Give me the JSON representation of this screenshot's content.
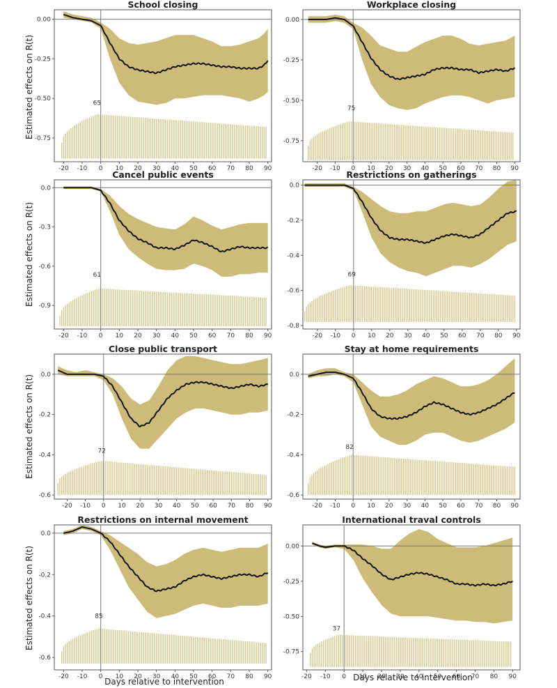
{
  "figure": {
    "ylabel": "Estimated effects on R(t)",
    "xlabel": "Days relative to intervention"
  },
  "colors": {
    "band": "#c9b56e",
    "bars": "#d8c88e",
    "line": "#111111",
    "frame": "#555555",
    "refline": "#777777"
  },
  "chart_data": [
    {
      "type": "line",
      "title": "School closing",
      "xlim": [
        -25,
        92
      ],
      "ylim": [
        -0.9,
        0.06
      ],
      "xticks": [
        -20,
        -10,
        0,
        10,
        20,
        30,
        40,
        50,
        60,
        70,
        80,
        90
      ],
      "yticks": [
        0.0,
        -0.25,
        -0.5,
        -0.75
      ],
      "ytick_labels": [
        "0.00",
        "-0.25",
        "-0.50",
        "-0.75"
      ],
      "xtick_labels": [
        "-20",
        "-10",
        "0",
        "10",
        "20",
        "30",
        "40",
        "50",
        "60",
        "70",
        "80",
        "90"
      ],
      "bars": {
        "x_start": -21,
        "x_end": 89,
        "bottom": -0.88,
        "top_start": -0.78,
        "top_plateau": -0.6,
        "ramp_end": -2,
        "top_end": -0.68
      },
      "count_label": "65",
      "count_label_x": -2,
      "count_label_y": -0.54,
      "x": [
        -20,
        -15,
        -10,
        -5,
        0,
        5,
        10,
        15,
        20,
        25,
        30,
        35,
        40,
        45,
        50,
        55,
        60,
        65,
        70,
        75,
        80,
        85,
        88,
        90
      ],
      "y": [
        0.03,
        0.01,
        0.0,
        -0.01,
        -0.04,
        -0.15,
        -0.25,
        -0.3,
        -0.32,
        -0.33,
        -0.34,
        -0.32,
        -0.3,
        -0.29,
        -0.28,
        -0.28,
        -0.29,
        -0.3,
        -0.3,
        -0.31,
        -0.31,
        -0.31,
        -0.29,
        -0.26
      ],
      "lower": [
        0.01,
        0.0,
        -0.01,
        -0.02,
        -0.06,
        -0.25,
        -0.4,
        -0.48,
        -0.52,
        -0.53,
        -0.54,
        -0.53,
        -0.5,
        -0.5,
        -0.49,
        -0.48,
        -0.48,
        -0.48,
        -0.49,
        -0.5,
        -0.52,
        -0.5,
        -0.48,
        -0.46
      ],
      "upper": [
        0.05,
        0.03,
        0.02,
        0.01,
        -0.02,
        -0.06,
        -0.12,
        -0.15,
        -0.16,
        -0.15,
        -0.14,
        -0.12,
        -0.1,
        -0.1,
        -0.1,
        -0.12,
        -0.14,
        -0.17,
        -0.17,
        -0.16,
        -0.14,
        -0.12,
        -0.09,
        -0.06
      ]
    },
    {
      "type": "line",
      "title": "Workplace closing",
      "xlim": [
        -28,
        93
      ],
      "ylim": [
        -0.88,
        0.06
      ],
      "xticks": [
        -20,
        -10,
        0,
        10,
        20,
        30,
        40,
        50,
        60,
        70,
        80,
        90
      ],
      "yticks": [
        0.0,
        -0.25,
        -0.5,
        -0.75
      ],
      "ytick_labels": [
        "0.00",
        "-0.25",
        "-0.50",
        "-0.75"
      ],
      "xtick_labels": [
        "-20",
        "-10",
        "0",
        "10",
        "20",
        "30",
        "40",
        "50",
        "60",
        "70",
        "80",
        "90"
      ],
      "bars": {
        "x_start": -25,
        "x_end": 89,
        "bottom": -0.87,
        "top_start": -0.78,
        "top_plateau": -0.63,
        "ramp_end": -2,
        "top_end": -0.7
      },
      "count_label": "75",
      "count_label_x": -1,
      "count_label_y": -0.56,
      "x": [
        -25,
        -20,
        -15,
        -10,
        -5,
        0,
        5,
        10,
        15,
        20,
        25,
        30,
        35,
        40,
        45,
        50,
        55,
        60,
        65,
        70,
        75,
        80,
        85,
        90
      ],
      "y": [
        0.0,
        0.0,
        0.0,
        0.01,
        0.0,
        -0.04,
        -0.14,
        -0.24,
        -0.31,
        -0.35,
        -0.37,
        -0.36,
        -0.35,
        -0.34,
        -0.31,
        -0.3,
        -0.3,
        -0.31,
        -0.31,
        -0.33,
        -0.32,
        -0.31,
        -0.32,
        -0.3
      ],
      "lower": [
        -0.02,
        -0.02,
        -0.02,
        -0.01,
        -0.02,
        -0.06,
        -0.25,
        -0.4,
        -0.48,
        -0.53,
        -0.55,
        -0.56,
        -0.55,
        -0.52,
        -0.5,
        -0.48,
        -0.47,
        -0.47,
        -0.48,
        -0.5,
        -0.52,
        -0.5,
        -0.49,
        -0.48
      ],
      "upper": [
        0.02,
        0.02,
        0.02,
        0.03,
        0.02,
        -0.02,
        -0.05,
        -0.1,
        -0.16,
        -0.18,
        -0.2,
        -0.2,
        -0.17,
        -0.14,
        -0.12,
        -0.1,
        -0.1,
        -0.12,
        -0.15,
        -0.16,
        -0.15,
        -0.14,
        -0.13,
        -0.1
      ]
    },
    {
      "type": "line",
      "title": "Cancel public events",
      "xlim": [
        -25,
        92
      ],
      "ylim": [
        -1.08,
        0.06
      ],
      "xticks": [
        -20,
        -10,
        0,
        10,
        20,
        30,
        40,
        50,
        60,
        70,
        80,
        90
      ],
      "yticks": [
        0.0,
        -0.3,
        -0.6,
        -0.9
      ],
      "ytick_labels": [
        "0.0",
        "-0.3",
        "-0.6",
        "-0.9"
      ],
      "xtick_labels": [
        "-20",
        "-10",
        "0",
        "10",
        "20",
        "30",
        "40",
        "50",
        "60",
        "70",
        "80",
        "90"
      ],
      "bars": {
        "x_start": -22,
        "x_end": 89,
        "bottom": -1.06,
        "top_start": -0.98,
        "top_plateau": -0.77,
        "ramp_end": -1,
        "top_end": -0.84
      },
      "count_label": "61",
      "count_label_x": -2,
      "count_label_y": -0.68,
      "x": [
        -20,
        -15,
        -10,
        -5,
        0,
        5,
        10,
        15,
        20,
        25,
        30,
        35,
        40,
        45,
        50,
        55,
        60,
        65,
        70,
        75,
        80,
        85,
        90
      ],
      "y": [
        0.0,
        0.0,
        0.0,
        0.0,
        -0.02,
        -0.12,
        -0.25,
        -0.33,
        -0.39,
        -0.42,
        -0.46,
        -0.46,
        -0.47,
        -0.44,
        -0.4,
        -0.42,
        -0.45,
        -0.49,
        -0.47,
        -0.45,
        -0.46,
        -0.46,
        -0.46
      ],
      "lower": [
        -0.01,
        -0.01,
        -0.01,
        -0.01,
        -0.03,
        -0.18,
        -0.36,
        -0.47,
        -0.53,
        -0.58,
        -0.62,
        -0.63,
        -0.63,
        -0.62,
        -0.58,
        -0.6,
        -0.63,
        -0.68,
        -0.68,
        -0.66,
        -0.66,
        -0.65,
        -0.65
      ],
      "upper": [
        0.01,
        0.01,
        0.01,
        0.01,
        -0.01,
        -0.06,
        -0.14,
        -0.2,
        -0.24,
        -0.27,
        -0.3,
        -0.31,
        -0.32,
        -0.28,
        -0.22,
        -0.25,
        -0.29,
        -0.32,
        -0.3,
        -0.28,
        -0.27,
        -0.27,
        -0.27
      ]
    },
    {
      "type": "line",
      "title": "Restrictions on gatherings",
      "xlim": [
        -28,
        92
      ],
      "ylim": [
        -0.82,
        0.03
      ],
      "xticks": [
        -20,
        -10,
        0,
        10,
        20,
        30,
        40,
        50,
        60,
        70,
        80,
        90
      ],
      "yticks": [
        0.0,
        -0.2,
        -0.4,
        -0.6,
        -0.8
      ],
      "ytick_labels": [
        "0.0",
        "-0.2",
        "-0.4",
        "-0.6",
        "-0.8"
      ],
      "xtick_labels": [
        "-20",
        "-10",
        "0",
        "10",
        "20",
        "30",
        "40",
        "50",
        "60",
        "70",
        "80",
        "90"
      ],
      "bars": {
        "x_start": -27,
        "x_end": 89,
        "bottom": -0.78,
        "top_start": -0.72,
        "top_plateau": -0.57,
        "ramp_end": -2,
        "top_end": -0.63
      },
      "count_label": "69",
      "count_label_x": -1,
      "count_label_y": -0.52,
      "x": [
        -27,
        -20,
        -15,
        -10,
        -5,
        0,
        5,
        10,
        15,
        20,
        25,
        30,
        35,
        40,
        45,
        50,
        55,
        60,
        65,
        70,
        75,
        80,
        85,
        90
      ],
      "y": [
        0.0,
        0.0,
        0.0,
        0.0,
        0.0,
        -0.02,
        -0.1,
        -0.19,
        -0.26,
        -0.3,
        -0.31,
        -0.31,
        -0.32,
        -0.33,
        -0.31,
        -0.29,
        -0.28,
        -0.29,
        -0.3,
        -0.28,
        -0.24,
        -0.2,
        -0.16,
        -0.15
      ],
      "lower": [
        -0.01,
        -0.01,
        -0.01,
        -0.01,
        -0.01,
        -0.03,
        -0.16,
        -0.3,
        -0.39,
        -0.44,
        -0.47,
        -0.49,
        -0.5,
        -0.52,
        -0.5,
        -0.48,
        -0.46,
        -0.46,
        -0.47,
        -0.45,
        -0.42,
        -0.38,
        -0.34,
        -0.32
      ],
      "upper": [
        0.01,
        0.01,
        0.01,
        0.01,
        0.01,
        -0.01,
        -0.04,
        -0.08,
        -0.12,
        -0.15,
        -0.16,
        -0.16,
        -0.15,
        -0.15,
        -0.13,
        -0.11,
        -0.1,
        -0.11,
        -0.12,
        -0.11,
        -0.07,
        -0.02,
        0.02,
        0.03
      ]
    },
    {
      "type": "line",
      "title": "Close public transport",
      "xlim": [
        -27,
        92
      ],
      "ylim": [
        -0.62,
        0.1
      ],
      "xticks": [
        -20,
        -10,
        0,
        10,
        20,
        30,
        40,
        50,
        60,
        70,
        80,
        90
      ],
      "yticks": [
        0.0,
        -0.2,
        -0.4,
        -0.6
      ],
      "ytick_labels": [
        "0.0",
        "-0.2",
        "-0.4",
        "-0.6"
      ],
      "xtick_labels": [
        "-20",
        "-10",
        "0",
        "10",
        "20",
        "30",
        "40",
        "50",
        "60",
        "70",
        "80",
        "90"
      ],
      "bars": {
        "x_start": -25,
        "x_end": 89,
        "bottom": -0.6,
        "top_start": -0.54,
        "top_plateau": -0.43,
        "ramp_end": -1,
        "top_end": -0.5
      },
      "count_label": "72",
      "count_label_x": -1,
      "count_label_y": -0.39,
      "x": [
        -25,
        -20,
        -15,
        -10,
        -5,
        0,
        5,
        10,
        15,
        20,
        25,
        30,
        35,
        40,
        45,
        50,
        55,
        60,
        65,
        70,
        75,
        80,
        85,
        90
      ],
      "y": [
        0.02,
        0.0,
        0.0,
        0.0,
        0.0,
        -0.01,
        -0.06,
        -0.14,
        -0.22,
        -0.26,
        -0.24,
        -0.18,
        -0.12,
        -0.08,
        -0.05,
        -0.04,
        -0.04,
        -0.05,
        -0.06,
        -0.07,
        -0.06,
        -0.05,
        -0.06,
        -0.05
      ],
      "lower": [
        0.0,
        -0.01,
        -0.01,
        -0.01,
        -0.01,
        -0.03,
        -0.1,
        -0.22,
        -0.32,
        -0.37,
        -0.37,
        -0.32,
        -0.27,
        -0.22,
        -0.19,
        -0.17,
        -0.17,
        -0.18,
        -0.19,
        -0.2,
        -0.2,
        -0.19,
        -0.19,
        -0.18
      ],
      "upper": [
        0.04,
        0.02,
        0.01,
        0.02,
        0.01,
        0.0,
        -0.02,
        -0.06,
        -0.12,
        -0.15,
        -0.13,
        -0.06,
        0.02,
        0.07,
        0.09,
        0.09,
        0.08,
        0.07,
        0.06,
        0.05,
        0.05,
        0.06,
        0.07,
        0.08
      ]
    },
    {
      "type": "line",
      "title": "Stay at home requirements",
      "xlim": [
        -28,
        93
      ],
      "ylim": [
        -0.62,
        0.1
      ],
      "xticks": [
        -20,
        -10,
        0,
        10,
        20,
        30,
        40,
        50,
        60,
        70,
        80,
        90
      ],
      "yticks": [
        0.0,
        -0.2,
        -0.4,
        -0.6
      ],
      "ytick_labels": [
        "0.0",
        "-0.2",
        "-0.4",
        "-0.6"
      ],
      "xtick_labels": [
        "-20",
        "-10",
        "0",
        "10",
        "20",
        "30",
        "40",
        "50",
        "60",
        "70",
        "80",
        "90"
      ],
      "bars": {
        "x_start": -25,
        "x_end": 90,
        "bottom": -0.6,
        "top_start": -0.54,
        "top_plateau": -0.4,
        "ramp_end": -1,
        "top_end": -0.46
      },
      "count_label": "82",
      "count_label_x": -2,
      "count_label_y": -0.37,
      "x": [
        -25,
        -20,
        -15,
        -10,
        -5,
        0,
        5,
        10,
        15,
        20,
        25,
        30,
        35,
        40,
        45,
        50,
        55,
        60,
        65,
        70,
        75,
        80,
        85,
        90
      ],
      "y": [
        -0.01,
        0.0,
        0.01,
        0.01,
        0.0,
        -0.02,
        -0.09,
        -0.17,
        -0.21,
        -0.22,
        -0.22,
        -0.21,
        -0.19,
        -0.16,
        -0.14,
        -0.15,
        -0.17,
        -0.19,
        -0.2,
        -0.19,
        -0.17,
        -0.15,
        -0.12,
        -0.09
      ],
      "lower": [
        -0.02,
        -0.01,
        -0.01,
        0.0,
        -0.01,
        -0.04,
        -0.15,
        -0.26,
        -0.31,
        -0.33,
        -0.35,
        -0.35,
        -0.33,
        -0.3,
        -0.29,
        -0.29,
        -0.31,
        -0.33,
        -0.34,
        -0.33,
        -0.31,
        -0.29,
        -0.27,
        -0.24
      ],
      "upper": [
        0.0,
        0.02,
        0.03,
        0.03,
        0.01,
        0.0,
        -0.04,
        -0.08,
        -0.11,
        -0.11,
        -0.1,
        -0.08,
        -0.05,
        -0.03,
        -0.01,
        -0.02,
        -0.04,
        -0.06,
        -0.06,
        -0.05,
        -0.03,
        0.0,
        0.04,
        0.08
      ]
    },
    {
      "type": "line",
      "title": "Restrictions on internal movement",
      "xlim": [
        -25,
        92
      ],
      "ylim": [
        -0.66,
        0.04
      ],
      "xticks": [
        -20,
        -10,
        0,
        10,
        20,
        30,
        40,
        50,
        60,
        70,
        80,
        90
      ],
      "yticks": [
        0.0,
        -0.2,
        -0.4,
        -0.6
      ],
      "ytick_labels": [
        "0.0",
        "-0.2",
        "-0.4",
        "-0.6"
      ],
      "xtick_labels": [
        "-20",
        "-10",
        "0",
        "10",
        "20",
        "30",
        "40",
        "50",
        "60",
        "70",
        "80",
        "90"
      ],
      "bars": {
        "x_start": -21,
        "x_end": 89,
        "bottom": -0.63,
        "top_start": -0.57,
        "top_plateau": -0.46,
        "ramp_end": -1,
        "top_end": -0.53
      },
      "count_label": "85",
      "count_label_x": -1,
      "count_label_y": -0.41,
      "x": [
        -20,
        -15,
        -10,
        -5,
        0,
        5,
        10,
        15,
        20,
        25,
        30,
        35,
        40,
        45,
        50,
        55,
        60,
        65,
        70,
        75,
        80,
        85,
        90
      ],
      "y": [
        0.0,
        0.01,
        0.03,
        0.02,
        0.0,
        -0.04,
        -0.1,
        -0.16,
        -0.21,
        -0.26,
        -0.28,
        -0.27,
        -0.26,
        -0.23,
        -0.21,
        -0.2,
        -0.21,
        -0.22,
        -0.21,
        -0.2,
        -0.2,
        -0.21,
        -0.19
      ],
      "lower": [
        -0.01,
        0.0,
        0.02,
        0.01,
        -0.01,
        -0.08,
        -0.17,
        -0.26,
        -0.32,
        -0.38,
        -0.41,
        -0.4,
        -0.39,
        -0.37,
        -0.35,
        -0.34,
        -0.35,
        -0.36,
        -0.36,
        -0.35,
        -0.35,
        -0.35,
        -0.34
      ],
      "upper": [
        0.01,
        0.02,
        0.04,
        0.03,
        0.01,
        -0.01,
        -0.04,
        -0.07,
        -0.1,
        -0.14,
        -0.16,
        -0.15,
        -0.13,
        -0.1,
        -0.08,
        -0.07,
        -0.08,
        -0.09,
        -0.08,
        -0.07,
        -0.07,
        -0.07,
        -0.05
      ]
    },
    {
      "type": "line",
      "title": "International traval controls",
      "xlim": [
        -22,
        94
      ],
      "ylim": [
        -0.88,
        0.15
      ],
      "xticks": [
        -20,
        -10,
        0,
        10,
        20,
        30,
        40,
        50,
        60,
        70,
        80,
        90
      ],
      "yticks": [
        0.0,
        -0.25,
        -0.5,
        -0.75
      ],
      "ytick_labels": [
        "0.00",
        "-0.25",
        "-0.50",
        "-0.75"
      ],
      "xtick_labels": [
        "-20",
        "-10",
        "0",
        "10",
        "20",
        "30",
        "40",
        "50",
        "60",
        "70",
        "80",
        "90"
      ],
      "bars": {
        "x_start": -18,
        "x_end": 89,
        "bottom": -0.86,
        "top_start": -0.76,
        "top_plateau": -0.63,
        "ramp_end": -3,
        "top_end": -0.68
      },
      "count_label": "37",
      "count_label_x": -4,
      "count_label_y": -0.6,
      "x": [
        -17,
        -13,
        -10,
        -5,
        0,
        5,
        10,
        15,
        20,
        25,
        30,
        35,
        40,
        45,
        50,
        55,
        60,
        65,
        70,
        75,
        80,
        85,
        90
      ],
      "y": [
        0.02,
        0.0,
        -0.01,
        0.0,
        0.0,
        -0.03,
        -0.09,
        -0.14,
        -0.2,
        -0.24,
        -0.22,
        -0.2,
        -0.19,
        -0.2,
        -0.22,
        -0.24,
        -0.27,
        -0.27,
        -0.28,
        -0.27,
        -0.28,
        -0.27,
        -0.25
      ],
      "lower": [
        0.01,
        -0.01,
        -0.02,
        -0.01,
        -0.02,
        -0.1,
        -0.23,
        -0.33,
        -0.42,
        -0.48,
        -0.5,
        -0.5,
        -0.5,
        -0.5,
        -0.51,
        -0.52,
        -0.53,
        -0.53,
        -0.54,
        -0.54,
        -0.55,
        -0.54,
        -0.53
      ],
      "upper": [
        0.03,
        0.01,
        0.0,
        0.01,
        0.01,
        0.01,
        0.01,
        0.0,
        -0.02,
        -0.02,
        0.04,
        0.09,
        0.12,
        0.1,
        0.05,
        0.02,
        -0.01,
        -0.01,
        -0.01,
        0.0,
        0.02,
        0.04,
        0.06
      ]
    }
  ]
}
